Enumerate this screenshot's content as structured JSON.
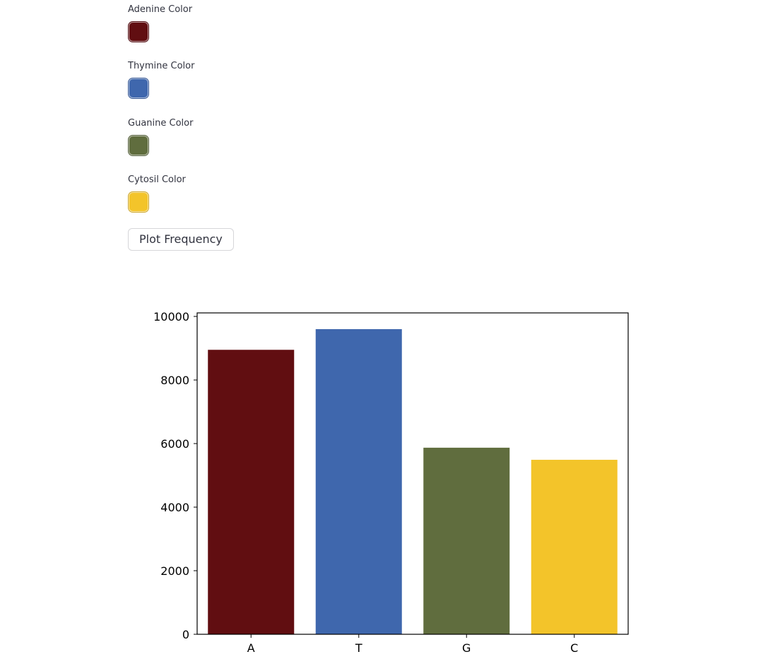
{
  "pickers": [
    {
      "label": "Adenine Color",
      "color": "#610e11"
    },
    {
      "label": "Thymine Color",
      "color": "#3f67ad"
    },
    {
      "label": "Guanine Color",
      "color": "#606d3e"
    },
    {
      "label": "Cytosil Color",
      "color": "#f3c42a"
    }
  ],
  "button": {
    "label": "Plot Frequency"
  },
  "chart_data": {
    "type": "bar",
    "categories": [
      "A",
      "T",
      "G",
      "C"
    ],
    "values": [
      8950,
      9600,
      5870,
      5490
    ],
    "colors": [
      "#610e11",
      "#3f67ad",
      "#606d3e",
      "#f3c42a"
    ],
    "ylim": [
      0,
      10000
    ],
    "yticks": [
      0,
      2000,
      4000,
      6000,
      8000,
      10000
    ],
    "grid": false,
    "title": "",
    "xlabel": "",
    "ylabel": ""
  }
}
